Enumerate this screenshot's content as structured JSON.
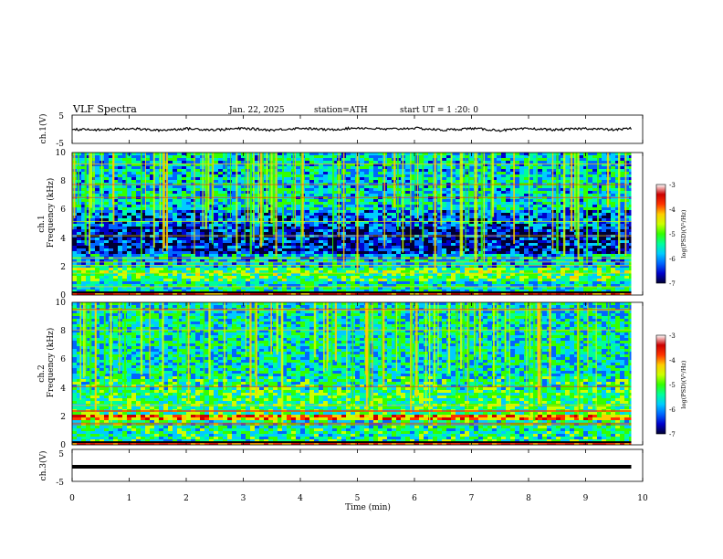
{
  "header": {
    "title": "VLF  Spectra",
    "date": "Jan. 22, 2025",
    "station": "station=ATH",
    "start_ut": "start  UT  =    1  :20: 0"
  },
  "panels": {
    "ch1_wave": {
      "ylabel": "ch.1(V)",
      "ticks": [
        "5",
        "-5"
      ]
    },
    "ch1_spec": {
      "ylabel_line1": "ch.1",
      "ylabel_line2": "Frequency  (kHz)",
      "ticks": [
        "10",
        "8",
        "6",
        "4",
        "2",
        "0"
      ]
    },
    "ch2_spec": {
      "ylabel_line1": "ch.2",
      "ylabel_line2": "Frequency  (kHz)",
      "ticks": [
        "10",
        "8",
        "6",
        "4",
        "2",
        "0"
      ]
    },
    "ch3_wave": {
      "ylabel": "ch.3(V)",
      "ticks": [
        "5",
        "-5"
      ]
    }
  },
  "x_axis": {
    "label": "Time  (min)",
    "ticks": [
      "0",
      "1",
      "2",
      "3",
      "4",
      "5",
      "6",
      "7",
      "8",
      "9",
      "10"
    ]
  },
  "colorbar": {
    "label": "log(PSD)(V²/Hz)",
    "ticks": [
      "-3",
      "-4",
      "-5",
      "-6",
      "-7"
    ],
    "colors": [
      "#000033",
      "#0000cc",
      "#0066ff",
      "#00ccff",
      "#00ff99",
      "#33ff00",
      "#ccff00",
      "#ffcc00",
      "#ff3300",
      "#cc0000",
      "#ffffff"
    ]
  },
  "chart_data": [
    {
      "type": "line",
      "name": "ch.1(V)",
      "xlabel": "Time  (min)",
      "ylabel": "ch.1(V)",
      "xlim": [
        0,
        10
      ],
      "ylim": [
        -5,
        5
      ],
      "x": [
        0,
        0.5,
        1,
        1.5,
        2,
        2.5,
        3,
        3.5,
        4,
        4.5,
        5,
        5.5,
        6,
        6.5,
        7,
        7.5,
        8,
        8.5,
        9,
        9.5,
        9.8
      ],
      "y": [
        0,
        -0.3,
        0.3,
        -0.4,
        0.2,
        -0.2,
        0.3,
        -0.3,
        0.4,
        -0.2,
        0.5,
        0,
        0.4,
        -0.3,
        0.3,
        -0.4,
        0.2,
        -0.2,
        0.3,
        -0.2,
        0.3
      ]
    },
    {
      "type": "heatmap",
      "name": "ch.1",
      "xlabel": "Time  (min)",
      "ylabel": "Frequency  (kHz)",
      "xlim": [
        0,
        10
      ],
      "ylim": [
        0,
        10
      ],
      "data_end_min": 9.8,
      "bands": [
        {
          "f_lo": 0,
          "f_hi": 0.3,
          "level": -3.4
        },
        {
          "f_lo": 0.3,
          "f_hi": 1.0,
          "level": -5.4
        },
        {
          "f_lo": 1.0,
          "f_hi": 2.0,
          "level": -4.9
        },
        {
          "f_lo": 2.0,
          "f_hi": 3.0,
          "level": -5.6
        },
        {
          "f_lo": 3.0,
          "f_hi": 5.0,
          "level": -6.4
        },
        {
          "f_lo": 5.0,
          "f_hi": 6.0,
          "level": -6.0
        },
        {
          "f_lo": 6.0,
          "f_hi": 10.0,
          "level": -5.5
        }
      ],
      "colorbar_range": [
        -7,
        -3
      ]
    },
    {
      "type": "heatmap",
      "name": "ch.2",
      "xlabel": "Time  (min)",
      "ylabel": "Frequency  (kHz)",
      "xlim": [
        0,
        10
      ],
      "ylim": [
        0,
        10
      ],
      "data_end_min": 9.8,
      "bands": [
        {
          "f_lo": 0,
          "f_hi": 0.3,
          "level": -3.4
        },
        {
          "f_lo": 0.3,
          "f_hi": 1.8,
          "level": -5.2
        },
        {
          "f_lo": 1.8,
          "f_hi": 2.2,
          "level": -3.9
        },
        {
          "f_lo": 2.2,
          "f_hi": 4.0,
          "level": -5.0
        },
        {
          "f_lo": 4.0,
          "f_hi": 5.0,
          "level": -5.2
        },
        {
          "f_lo": 5.0,
          "f_hi": 10.0,
          "level": -5.4
        }
      ],
      "colorbar_range": [
        -7,
        -3
      ]
    },
    {
      "type": "line",
      "name": "ch.3(V)",
      "xlabel": "Time  (min)",
      "ylabel": "ch.3(V)",
      "xlim": [
        0,
        10
      ],
      "ylim": [
        -5,
        5
      ],
      "x": [
        0,
        9.8
      ],
      "y": [
        0,
        0
      ]
    }
  ]
}
